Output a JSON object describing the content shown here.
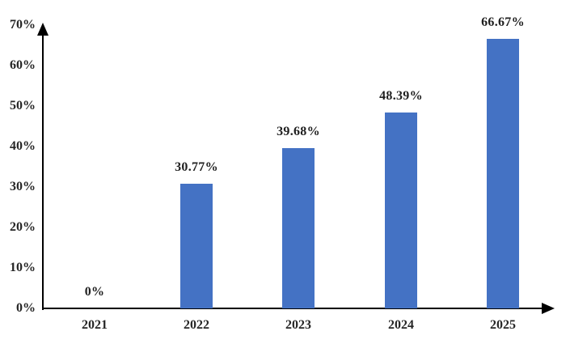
{
  "chart_data": {
    "type": "bar",
    "title": "",
    "xlabel": "",
    "ylabel": "",
    "categories": [
      "2021",
      "2022",
      "2023",
      "2024",
      "2025"
    ],
    "values": [
      0,
      30.77,
      39.68,
      48.39,
      66.67
    ],
    "data_labels": [
      "0%",
      "30.77%",
      "39.68%",
      "48.39%",
      "66.67%"
    ],
    "ylim": [
      0,
      70
    ],
    "ytick_step": 10,
    "ytick_labels": [
      "0%",
      "10%",
      "20%",
      "30%",
      "40%",
      "50%",
      "60%",
      "70%"
    ],
    "grid": false,
    "legend_position": "none",
    "bar_color": "#4472C4",
    "axis_color": "#000000",
    "text_color": "#262626",
    "background_color": "#ffffff"
  }
}
